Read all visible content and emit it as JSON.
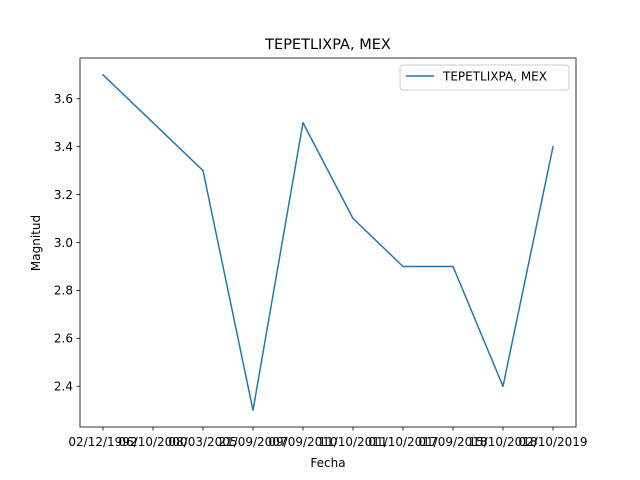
{
  "chart_data": {
    "type": "line",
    "title": "TEPETLIXPA, MEX",
    "xlabel": "Fecha",
    "ylabel": "Magnitud",
    "categories": [
      "02/12/1992",
      "06/10/2000",
      "08/03/2005",
      "21/09/2007",
      "09/09/2010",
      "11/10/2011",
      "01/10/2017",
      "01/09/2018",
      "15/10/2018",
      "02/10/2019"
    ],
    "series": [
      {
        "name": "TEPETLIXPA, MEX",
        "color": "#1f77b4",
        "values": [
          3.7,
          3.5,
          3.3,
          2.3,
          3.5,
          3.1,
          2.9,
          2.9,
          2.4,
          3.4
        ]
      }
    ],
    "ylim": [
      2.23,
      3.77
    ],
    "yticks": [
      "2.4",
      "2.6",
      "2.8",
      "3.0",
      "3.2",
      "3.4",
      "3.6"
    ],
    "grid": false,
    "legend_position": "top-right"
  }
}
